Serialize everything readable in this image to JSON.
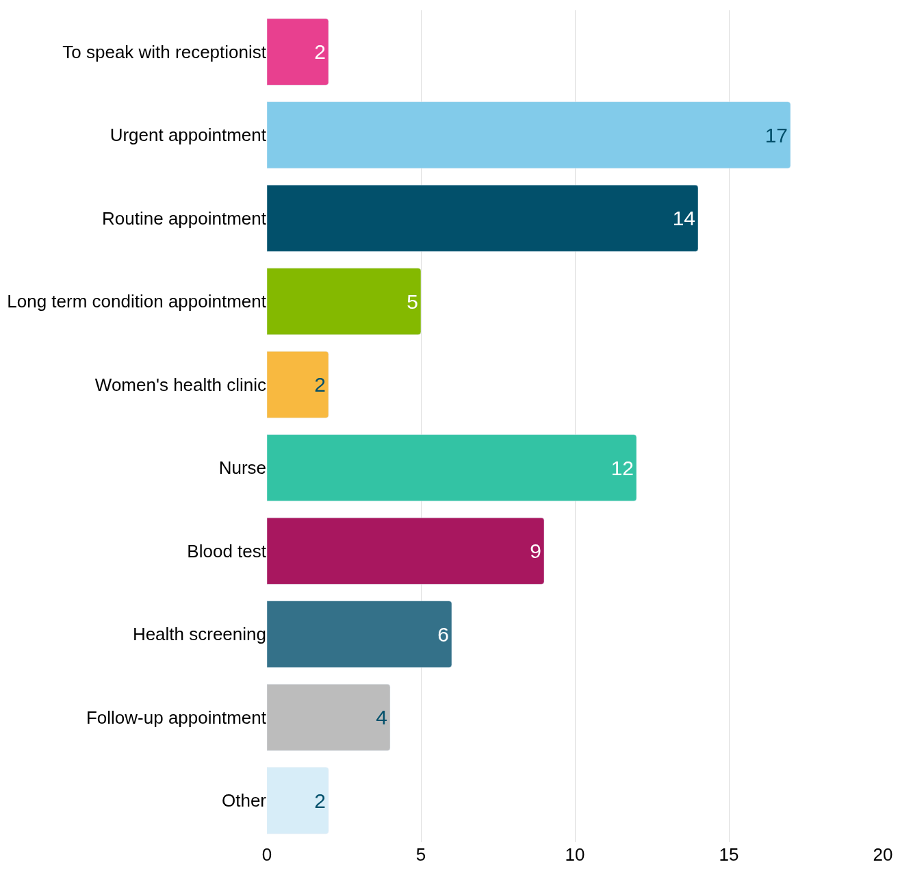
{
  "chart_data": {
    "type": "bar",
    "orientation": "horizontal",
    "categories": [
      "To speak with receptionist",
      "Urgent appointment",
      "Routine appointment",
      "Long term condition appointment",
      "Women's health clinic",
      "Nurse",
      "Blood test",
      "Health screening",
      "Follow-up appointment",
      "Other"
    ],
    "values": [
      2,
      17,
      14,
      5,
      2,
      12,
      9,
      6,
      4,
      2
    ],
    "colors": [
      "#e8408f",
      "#82cbea",
      "#02506b",
      "#84b900",
      "#f8b940",
      "#33c3a4",
      "#a8175f",
      "#347189",
      "#bcbcbc",
      "#d7edf8"
    ],
    "xlim": [
      0,
      20
    ],
    "xticks": [
      0,
      5,
      10,
      15,
      20
    ],
    "grid": "x",
    "data_labels": true,
    "legend": false
  }
}
